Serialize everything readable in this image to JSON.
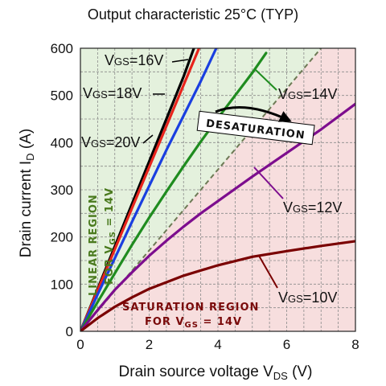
{
  "chart_data": {
    "type": "line",
    "title": "Output characteristic 25°C  (TYP)",
    "xlabel_main": "Drain source voltage V",
    "xlabel_sub": "DS",
    "xlabel_unit": " (V)",
    "ylabel_main": "Drain current I",
    "ylabel_sub": "D",
    "ylabel_unit": " (A)",
    "xlim": [
      0,
      8
    ],
    "ylim": [
      0,
      600
    ],
    "xticks": [
      0,
      2,
      4,
      6,
      8
    ],
    "yticks": [
      0,
      100,
      200,
      300,
      400,
      500,
      600
    ],
    "grid": true,
    "colors": {
      "linear_region_fill": "#e4f1dd",
      "saturation_region_fill": "#f7dede",
      "grid": "#8a8a8a",
      "boundary": "#6d7a55",
      "linear_text": "#4a7a1e",
      "saturation_text": "#7a0a0a"
    },
    "series": [
      {
        "label_main": "V",
        "label_sub": "GS",
        "label_value": "=20V",
        "color": "#000000",
        "x": [
          0,
          0.5,
          1,
          1.5,
          2,
          2.5,
          3,
          3.3
        ],
        "y": [
          0,
          90,
          180,
          270,
          360,
          450,
          540,
          600
        ]
      },
      {
        "label_main": "V",
        "label_sub": "GS",
        "label_value": "=18V",
        "color": "#e8241c",
        "x": [
          0,
          0.5,
          1,
          1.5,
          2,
          2.5,
          3,
          3.45
        ],
        "y": [
          0,
          87,
          174,
          261,
          348,
          435,
          522,
          600
        ]
      },
      {
        "label_main": "V",
        "label_sub": "GS",
        "label_value": "=16V",
        "color": "#1a3fe0",
        "x": [
          0,
          0.5,
          1,
          1.5,
          2,
          2.5,
          3,
          3.5,
          3.95
        ],
        "y": [
          0,
          78,
          155,
          232,
          308,
          384,
          457,
          530,
          600
        ]
      },
      {
        "label_main": "V",
        "label_sub": "GS",
        "label_value": "=14V",
        "color": "#1f8c1f",
        "x": [
          0,
          0.5,
          1,
          1.5,
          2,
          2.5,
          3,
          3.5,
          4,
          4.5,
          5,
          5.4
        ],
        "y": [
          0,
          62,
          123,
          183,
          241,
          296,
          350,
          402,
          452,
          500,
          548,
          590
        ]
      },
      {
        "label_main": "V",
        "label_sub": "GS",
        "label_value": "=12V",
        "color": "#7d0d8e",
        "x": [
          0,
          0.5,
          1,
          1.5,
          2,
          2.5,
          3,
          3.5,
          4,
          5,
          6,
          7,
          8
        ],
        "y": [
          0,
          45,
          88,
          125,
          160,
          192,
          222,
          250,
          276,
          328,
          378,
          428,
          482
        ]
      },
      {
        "label_main": "V",
        "label_sub": "GS",
        "label_value": "=10V",
        "color": "#7a0000",
        "x": [
          0,
          0.5,
          1,
          1.5,
          2,
          3,
          4,
          5,
          6,
          7,
          8
        ],
        "y": [
          0,
          28,
          52,
          72,
          90,
          118,
          140,
          158,
          170,
          181,
          191
        ]
      }
    ],
    "boundary_line": {
      "x": [
        0,
        7
      ],
      "y": [
        0,
        600
      ]
    },
    "annotations": {
      "linear_region": [
        "LINEAR REGION",
        "FOR V",
        "GS",
        " = 14V"
      ],
      "saturation_region": [
        "SATURATION REGION",
        "FOR V",
        "GS",
        " = 14V"
      ],
      "desaturation": "DESATURATION"
    }
  }
}
